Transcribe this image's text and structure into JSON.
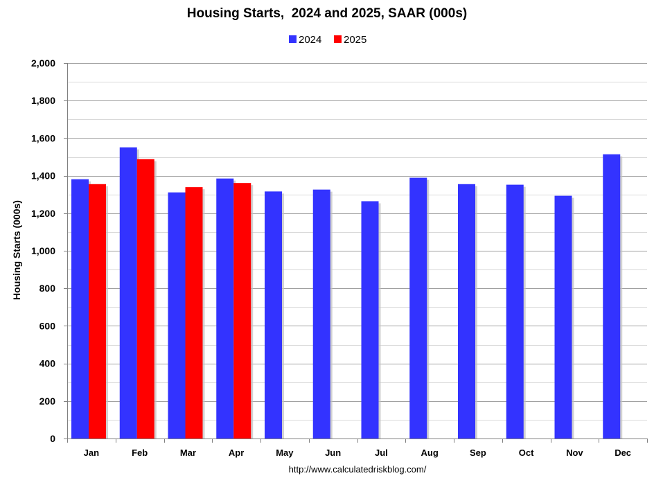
{
  "chart_data": {
    "type": "bar",
    "title": "Housing Starts,  2024 and 2025, SAAR (000s)",
    "ylabel": "Housing Starts (000s)",
    "xlabel": "",
    "source_text": "http://www.calculatedriskblog.com/",
    "categories": [
      "Jan",
      "Feb",
      "Mar",
      "Apr",
      "May",
      "Jun",
      "Jul",
      "Aug",
      "Sep",
      "Oct",
      "Nov",
      "Dec"
    ],
    "series": [
      {
        "name": "2024",
        "color": "#3333ff",
        "values": [
          1381,
          1551,
          1311,
          1385,
          1316,
          1326,
          1264,
          1389,
          1355,
          1352,
          1293,
          1514
        ]
      },
      {
        "name": "2025",
        "color": "#ff0000",
        "values": [
          1355,
          1488,
          1339,
          1361,
          null,
          null,
          null,
          null,
          null,
          null,
          null,
          null
        ]
      }
    ],
    "ylim": [
      0,
      2000
    ],
    "yticks": [
      0,
      200,
      400,
      600,
      800,
      1000,
      1200,
      1400,
      1600,
      1800,
      2000
    ],
    "ytick_labels": [
      "0",
      "200",
      "400",
      "600",
      "800",
      "1,000",
      "1,200",
      "1,400",
      "1,600",
      "1,800",
      "2,000"
    ],
    "minor_gridlines": true,
    "legend_position": "top-center",
    "colors": {
      "gridline": "#a0a0a0",
      "minor_gridline": "#d9d9d9",
      "axis": "#808080",
      "shadow": "#bfbfbf"
    }
  }
}
